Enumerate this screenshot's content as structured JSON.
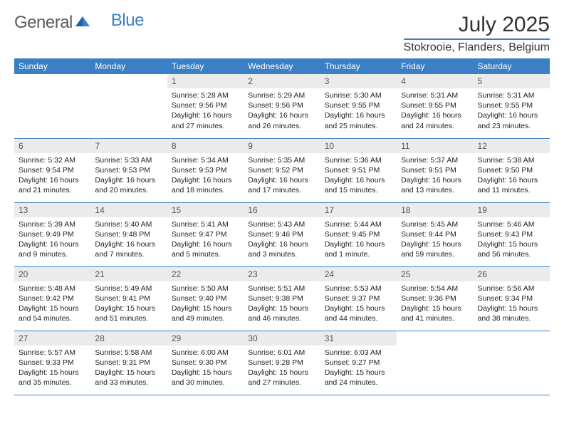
{
  "logo": {
    "text1": "General",
    "text2": "Blue"
  },
  "title": "July 2025",
  "location": "Stokrooie, Flanders, Belgium",
  "colors": {
    "header_bg": "#3b7fc4",
    "header_text": "#ffffff",
    "daynum_bg": "#ebebeb",
    "daynum_text": "#555555",
    "body_text": "#222222",
    "border": "#3b7fc4",
    "logo_gray": "#5a5a5a",
    "logo_blue": "#3b7fc4"
  },
  "fonts": {
    "title_size": 30,
    "location_size": 16,
    "weekday_size": 12,
    "daynum_size": 12,
    "cell_size": 10.5
  },
  "weekdays": [
    "Sunday",
    "Monday",
    "Tuesday",
    "Wednesday",
    "Thursday",
    "Friday",
    "Saturday"
  ],
  "weeks": [
    [
      {
        "day": "",
        "sunrise": "",
        "sunset": "",
        "daylight": ""
      },
      {
        "day": "",
        "sunrise": "",
        "sunset": "",
        "daylight": ""
      },
      {
        "day": "1",
        "sunrise": "Sunrise: 5:28 AM",
        "sunset": "Sunset: 9:56 PM",
        "daylight": "Daylight: 16 hours and 27 minutes."
      },
      {
        "day": "2",
        "sunrise": "Sunrise: 5:29 AM",
        "sunset": "Sunset: 9:56 PM",
        "daylight": "Daylight: 16 hours and 26 minutes."
      },
      {
        "day": "3",
        "sunrise": "Sunrise: 5:30 AM",
        "sunset": "Sunset: 9:55 PM",
        "daylight": "Daylight: 16 hours and 25 minutes."
      },
      {
        "day": "4",
        "sunrise": "Sunrise: 5:31 AM",
        "sunset": "Sunset: 9:55 PM",
        "daylight": "Daylight: 16 hours and 24 minutes."
      },
      {
        "day": "5",
        "sunrise": "Sunrise: 5:31 AM",
        "sunset": "Sunset: 9:55 PM",
        "daylight": "Daylight: 16 hours and 23 minutes."
      }
    ],
    [
      {
        "day": "6",
        "sunrise": "Sunrise: 5:32 AM",
        "sunset": "Sunset: 9:54 PM",
        "daylight": "Daylight: 16 hours and 21 minutes."
      },
      {
        "day": "7",
        "sunrise": "Sunrise: 5:33 AM",
        "sunset": "Sunset: 9:53 PM",
        "daylight": "Daylight: 16 hours and 20 minutes."
      },
      {
        "day": "8",
        "sunrise": "Sunrise: 5:34 AM",
        "sunset": "Sunset: 9:53 PM",
        "daylight": "Daylight: 16 hours and 18 minutes."
      },
      {
        "day": "9",
        "sunrise": "Sunrise: 5:35 AM",
        "sunset": "Sunset: 9:52 PM",
        "daylight": "Daylight: 16 hours and 17 minutes."
      },
      {
        "day": "10",
        "sunrise": "Sunrise: 5:36 AM",
        "sunset": "Sunset: 9:51 PM",
        "daylight": "Daylight: 16 hours and 15 minutes."
      },
      {
        "day": "11",
        "sunrise": "Sunrise: 5:37 AM",
        "sunset": "Sunset: 9:51 PM",
        "daylight": "Daylight: 16 hours and 13 minutes."
      },
      {
        "day": "12",
        "sunrise": "Sunrise: 5:38 AM",
        "sunset": "Sunset: 9:50 PM",
        "daylight": "Daylight: 16 hours and 11 minutes."
      }
    ],
    [
      {
        "day": "13",
        "sunrise": "Sunrise: 5:39 AM",
        "sunset": "Sunset: 9:49 PM",
        "daylight": "Daylight: 16 hours and 9 minutes."
      },
      {
        "day": "14",
        "sunrise": "Sunrise: 5:40 AM",
        "sunset": "Sunset: 9:48 PM",
        "daylight": "Daylight: 16 hours and 7 minutes."
      },
      {
        "day": "15",
        "sunrise": "Sunrise: 5:41 AM",
        "sunset": "Sunset: 9:47 PM",
        "daylight": "Daylight: 16 hours and 5 minutes."
      },
      {
        "day": "16",
        "sunrise": "Sunrise: 5:43 AM",
        "sunset": "Sunset: 9:46 PM",
        "daylight": "Daylight: 16 hours and 3 minutes."
      },
      {
        "day": "17",
        "sunrise": "Sunrise: 5:44 AM",
        "sunset": "Sunset: 9:45 PM",
        "daylight": "Daylight: 16 hours and 1 minute."
      },
      {
        "day": "18",
        "sunrise": "Sunrise: 5:45 AM",
        "sunset": "Sunset: 9:44 PM",
        "daylight": "Daylight: 15 hours and 59 minutes."
      },
      {
        "day": "19",
        "sunrise": "Sunrise: 5:46 AM",
        "sunset": "Sunset: 9:43 PM",
        "daylight": "Daylight: 15 hours and 56 minutes."
      }
    ],
    [
      {
        "day": "20",
        "sunrise": "Sunrise: 5:48 AM",
        "sunset": "Sunset: 9:42 PM",
        "daylight": "Daylight: 15 hours and 54 minutes."
      },
      {
        "day": "21",
        "sunrise": "Sunrise: 5:49 AM",
        "sunset": "Sunset: 9:41 PM",
        "daylight": "Daylight: 15 hours and 51 minutes."
      },
      {
        "day": "22",
        "sunrise": "Sunrise: 5:50 AM",
        "sunset": "Sunset: 9:40 PM",
        "daylight": "Daylight: 15 hours and 49 minutes."
      },
      {
        "day": "23",
        "sunrise": "Sunrise: 5:51 AM",
        "sunset": "Sunset: 9:38 PM",
        "daylight": "Daylight: 15 hours and 46 minutes."
      },
      {
        "day": "24",
        "sunrise": "Sunrise: 5:53 AM",
        "sunset": "Sunset: 9:37 PM",
        "daylight": "Daylight: 15 hours and 44 minutes."
      },
      {
        "day": "25",
        "sunrise": "Sunrise: 5:54 AM",
        "sunset": "Sunset: 9:36 PM",
        "daylight": "Daylight: 15 hours and 41 minutes."
      },
      {
        "day": "26",
        "sunrise": "Sunrise: 5:56 AM",
        "sunset": "Sunset: 9:34 PM",
        "daylight": "Daylight: 15 hours and 38 minutes."
      }
    ],
    [
      {
        "day": "27",
        "sunrise": "Sunrise: 5:57 AM",
        "sunset": "Sunset: 9:33 PM",
        "daylight": "Daylight: 15 hours and 35 minutes."
      },
      {
        "day": "28",
        "sunrise": "Sunrise: 5:58 AM",
        "sunset": "Sunset: 9:31 PM",
        "daylight": "Daylight: 15 hours and 33 minutes."
      },
      {
        "day": "29",
        "sunrise": "Sunrise: 6:00 AM",
        "sunset": "Sunset: 9:30 PM",
        "daylight": "Daylight: 15 hours and 30 minutes."
      },
      {
        "day": "30",
        "sunrise": "Sunrise: 6:01 AM",
        "sunset": "Sunset: 9:28 PM",
        "daylight": "Daylight: 15 hours and 27 minutes."
      },
      {
        "day": "31",
        "sunrise": "Sunrise: 6:03 AM",
        "sunset": "Sunset: 9:27 PM",
        "daylight": "Daylight: 15 hours and 24 minutes."
      },
      {
        "day": "",
        "sunrise": "",
        "sunset": "",
        "daylight": ""
      },
      {
        "day": "",
        "sunrise": "",
        "sunset": "",
        "daylight": ""
      }
    ]
  ]
}
